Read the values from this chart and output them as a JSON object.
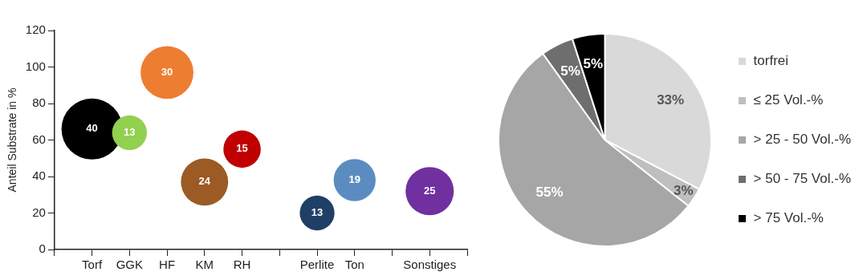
{
  "chart_data": [
    {
      "type": "bubble",
      "ylabel": "Anteil Substrate in %",
      "categories": [
        "Torf",
        "GGK",
        "HF",
        "KM",
        "RH",
        null,
        "Perlite",
        "Ton",
        null,
        "Sonstiges"
      ],
      "values": [
        66,
        64,
        97,
        37,
        55,
        null,
        20,
        38,
        null,
        32
      ],
      "sizes": [
        40,
        13,
        30,
        24,
        15,
        null,
        13,
        19,
        null,
        25
      ],
      "value_labels": [
        "40",
        "13",
        "30",
        "24",
        "15",
        null,
        "13",
        "19",
        null,
        "25"
      ],
      "colors": [
        "#000000",
        "#92d050",
        "#ed7d31",
        "#9c5b25",
        "#c00000",
        null,
        "#1f3f66",
        "#5b8cc0",
        null,
        "#7030a0"
      ],
      "ylim": [
        0,
        120
      ],
      "yticks": [
        0,
        20,
        40,
        60,
        80,
        100,
        120
      ]
    },
    {
      "type": "pie",
      "categories": [
        "torfrei",
        "≤ 25 Vol.-%",
        "> 25 - 50 Vol.-%",
        "> 50 - 75 Vol.-%",
        "> 75 Vol.-%"
      ],
      "values": [
        33,
        3,
        55,
        5,
        5
      ],
      "value_labels": [
        "33%",
        "3%",
        "55%",
        "5%",
        "5%"
      ],
      "colors": [
        "#d9d9d9",
        "#bfbfbf",
        "#a6a6a6",
        "#6e6e6e",
        "#000000"
      ],
      "legend": "right"
    }
  ]
}
